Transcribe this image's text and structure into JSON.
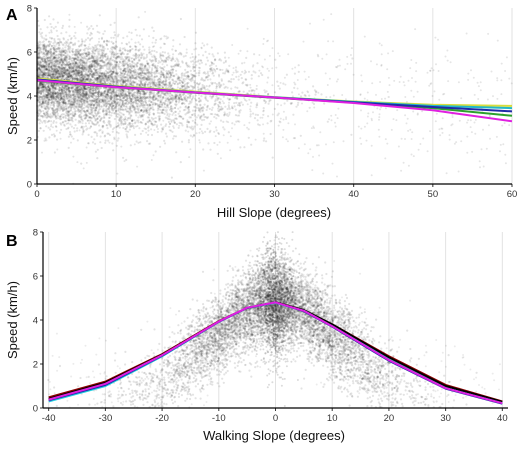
{
  "chart_data": [
    {
      "panel_label": "A",
      "type": "scatter",
      "xlabel": "Hill Slope (degrees)",
      "ylabel": "Speed (km/h)",
      "xlim": [
        0,
        60
      ],
      "ylim": [
        0,
        8
      ],
      "xticks": [
        "0",
        "10",
        "20",
        "30",
        "40",
        "50",
        "60"
      ],
      "yticks": [
        "0",
        "2",
        "4",
        "6",
        "8"
      ],
      "grid": "vertical",
      "point_color": "#000000",
      "scatter_description": "dense cloud centered near 0-10 degrees at speeds 3-6 km/h, thinning toward 60 degrees",
      "series": [
        {
          "color": "#d7dd3c",
          "x": [
            0,
            10,
            20,
            30,
            40,
            50,
            60
          ],
          "y": [
            4.8,
            4.45,
            4.2,
            3.95,
            3.75,
            3.6,
            3.55
          ]
        },
        {
          "color": "#22b8c8",
          "x": [
            0,
            10,
            20,
            30,
            40,
            50,
            60
          ],
          "y": [
            4.75,
            4.42,
            4.17,
            3.94,
            3.73,
            3.55,
            3.45
          ]
        },
        {
          "color": "#2ca02c",
          "x": [
            0,
            10,
            20,
            30,
            40,
            50,
            60
          ],
          "y": [
            4.7,
            4.4,
            4.15,
            3.92,
            3.7,
            3.45,
            3.1
          ]
        },
        {
          "color": "#1f2aa8",
          "x": [
            0,
            10,
            20,
            30,
            40,
            50,
            60
          ],
          "y": [
            4.75,
            4.42,
            4.16,
            3.93,
            3.71,
            3.5,
            3.3
          ]
        },
        {
          "color": "#e020e0",
          "x": [
            0,
            10,
            20,
            30,
            40,
            50,
            60
          ],
          "y": [
            4.72,
            4.4,
            4.16,
            3.93,
            3.68,
            3.35,
            2.85
          ]
        }
      ]
    },
    {
      "panel_label": "B",
      "type": "scatter",
      "xlabel": "Walking Slope (degrees)",
      "ylabel": "Speed (km/h)",
      "xlim": [
        -41,
        41
      ],
      "ylim": [
        0,
        8
      ],
      "xticks": [
        "-40",
        "-30",
        "-20",
        "-10",
        "0",
        "10",
        "20",
        "30",
        "40"
      ],
      "yticks": [
        "0",
        "2",
        "4",
        "6",
        "8"
      ],
      "grid": "vertical",
      "point_color": "#000000",
      "scatter_description": "peaked cloud around 0 degrees reaching up to 8 km/h, spreading symmetrically and falling toward +-40 degrees",
      "series": [
        {
          "color": "#8b0000",
          "x": [
            -40,
            -30,
            -20,
            -10,
            -5,
            0,
            5,
            10,
            20,
            30,
            40
          ],
          "y": [
            0.48,
            1.2,
            2.45,
            3.95,
            4.55,
            4.8,
            4.45,
            3.8,
            2.35,
            1.05,
            0.3
          ]
        },
        {
          "color": "#000000",
          "x": [
            -40,
            -30,
            -20,
            -10,
            -5,
            0,
            5,
            10,
            20,
            30,
            40
          ],
          "y": [
            0.42,
            1.15,
            2.42,
            3.93,
            4.55,
            4.8,
            4.45,
            3.8,
            2.3,
            1.0,
            0.28
          ]
        },
        {
          "color": "#22d0e0",
          "x": [
            -40,
            -30,
            -20,
            -10,
            -5,
            0,
            5,
            10,
            20,
            30,
            40
          ],
          "y": [
            0.3,
            1.0,
            2.35,
            3.92,
            4.55,
            4.78,
            4.42,
            3.72,
            2.2,
            0.9,
            0.22
          ]
        },
        {
          "color": "#1f2aa8",
          "x": [
            -40,
            -30,
            -20,
            -10,
            -5,
            0,
            5,
            10,
            20,
            30,
            40
          ],
          "y": [
            0.35,
            1.05,
            2.38,
            3.92,
            4.55,
            4.8,
            4.4,
            3.7,
            2.15,
            0.88,
            0.2
          ]
        },
        {
          "color": "#e020e0",
          "x": [
            -40,
            -30,
            -20,
            -10,
            -5,
            0,
            5,
            10,
            20,
            30,
            40
          ],
          "y": [
            0.38,
            1.1,
            2.4,
            3.93,
            4.56,
            4.8,
            4.42,
            3.72,
            2.18,
            0.9,
            0.22
          ]
        }
      ]
    }
  ]
}
